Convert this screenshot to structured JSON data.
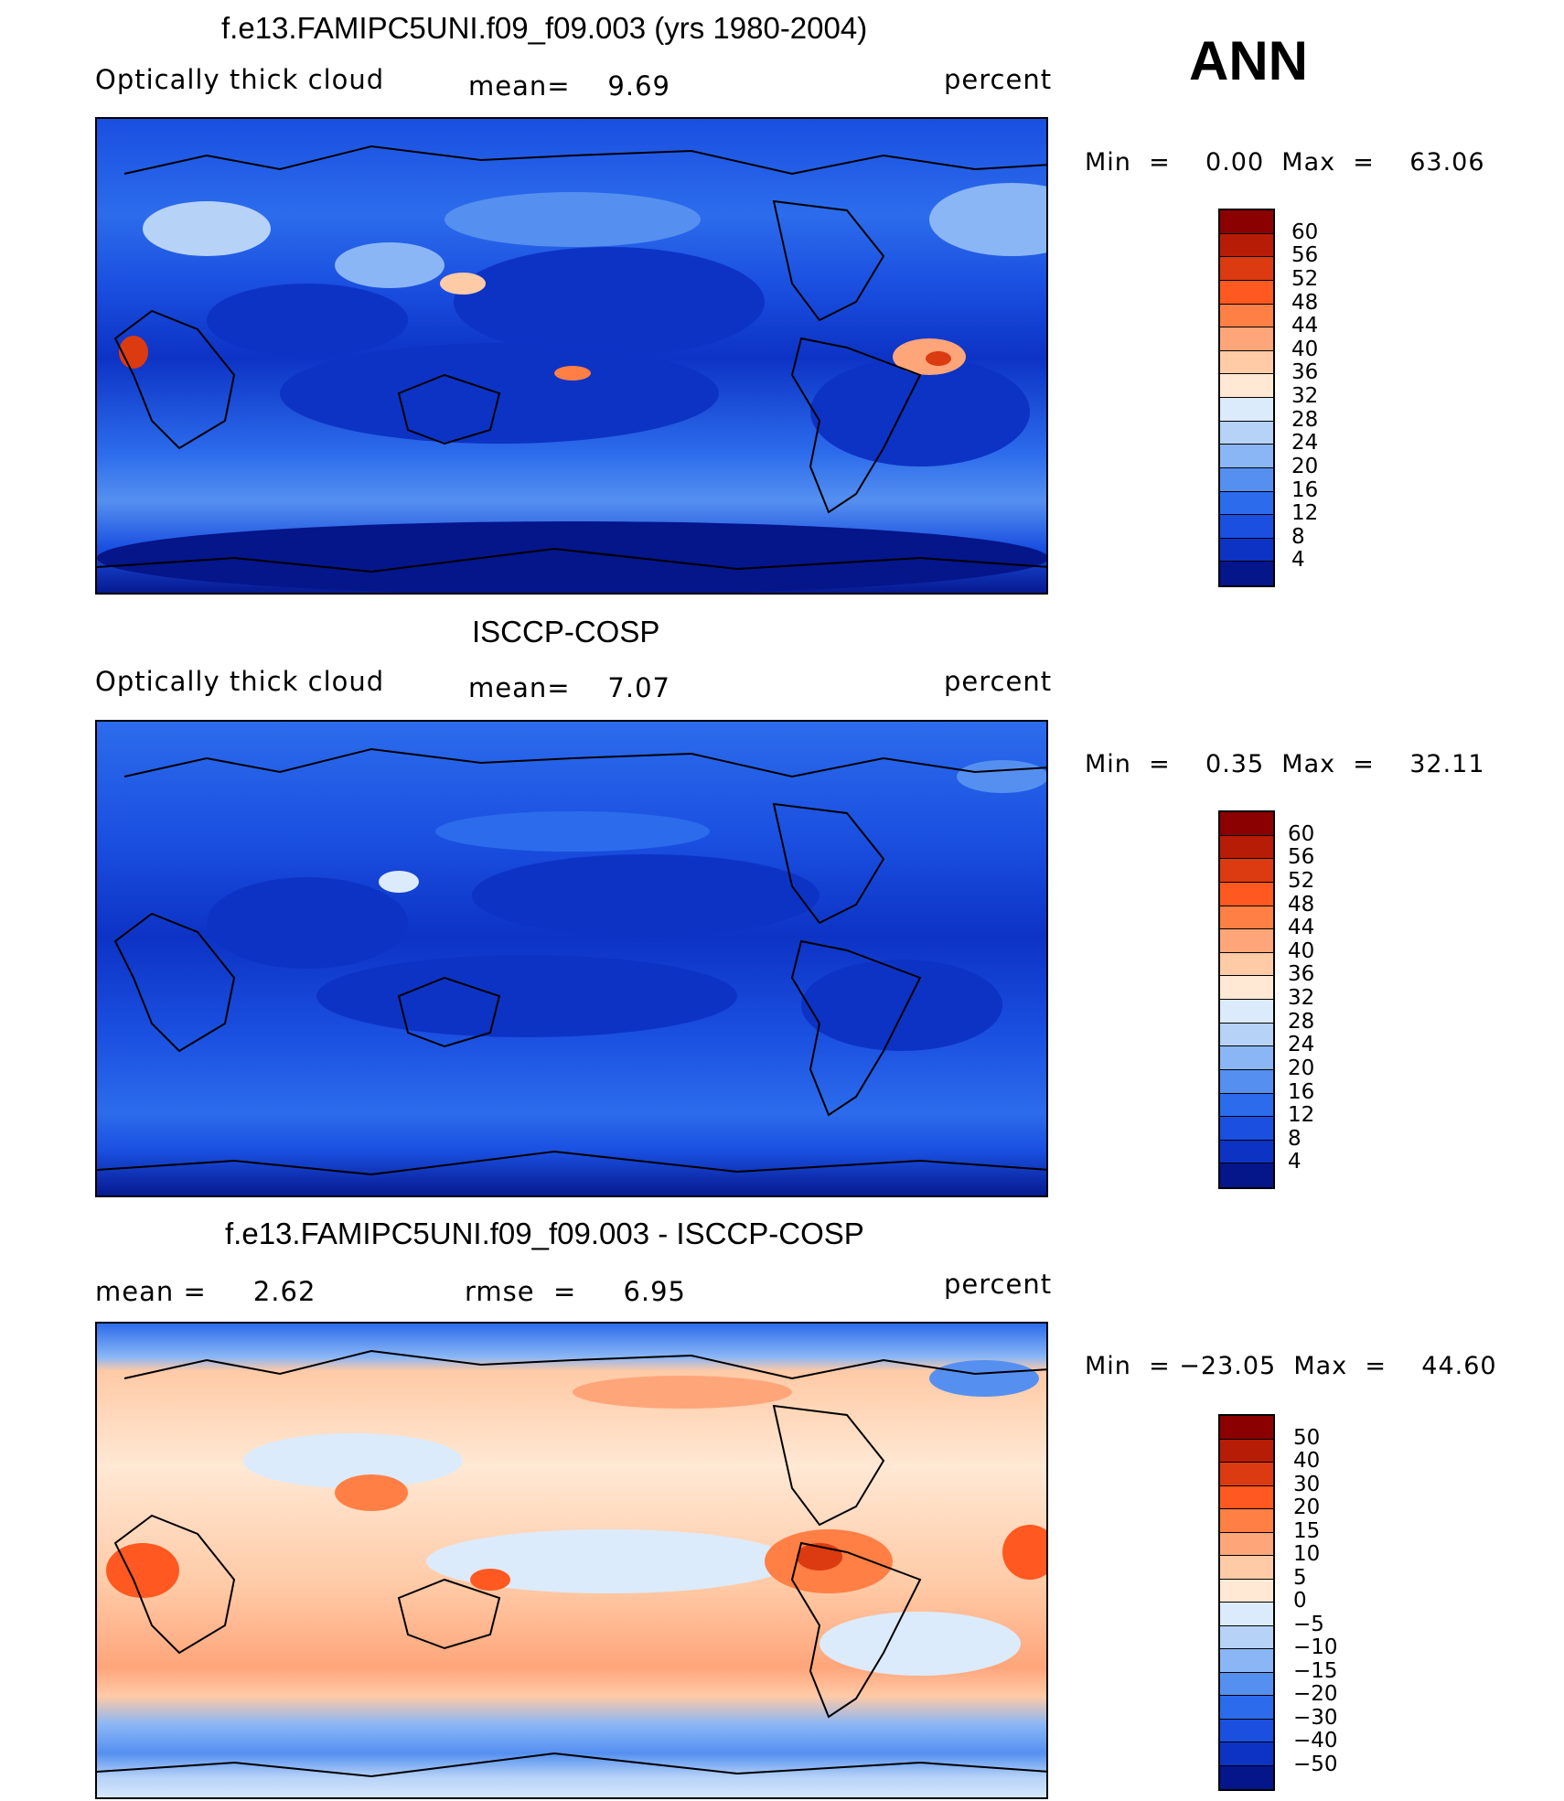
{
  "season": "ANN",
  "panels": [
    {
      "title": "f.e13.FAMIPC5UNI.f09_f09.003 (yrs 1980-2004)",
      "left_label": "Optically thick cloud",
      "mid_label": "mean=    9.69",
      "right_label": "percent",
      "minmax": "Min  =    0.00  Max  =    63.06",
      "colorbar": {
        "levels": [
          "60",
          "56",
          "52",
          "48",
          "44",
          "40",
          "36",
          "32",
          "28",
          "24",
          "20",
          "16",
          "12",
          "8",
          "4"
        ],
        "colors": [
          "#8b0000",
          "#b71c06",
          "#dc3a10",
          "#ff5820",
          "#ff7f45",
          "#ffa57a",
          "#ffcaa6",
          "#ffe8d4",
          "#dbebfb",
          "#b6d2f7",
          "#8ab6f5",
          "#5590f0",
          "#2c6cec",
          "#1a4fe0",
          "#0d33c5",
          "#05158a"
        ]
      }
    },
    {
      "title": "ISCCP-COSP",
      "left_label": "Optically thick cloud",
      "mid_label": "mean=    7.07",
      "right_label": "percent",
      "minmax": "Min  =    0.35  Max  =    32.11",
      "colorbar": {
        "levels": [
          "60",
          "56",
          "52",
          "48",
          "44",
          "40",
          "36",
          "32",
          "28",
          "24",
          "20",
          "16",
          "12",
          "8",
          "4"
        ],
        "colors": [
          "#8b0000",
          "#b71c06",
          "#dc3a10",
          "#ff5820",
          "#ff7f45",
          "#ffa57a",
          "#ffcaa6",
          "#ffe8d4",
          "#dbebfb",
          "#b6d2f7",
          "#8ab6f5",
          "#5590f0",
          "#2c6cec",
          "#1a4fe0",
          "#0d33c5",
          "#05158a"
        ]
      }
    },
    {
      "title": "f.e13.FAMIPC5UNI.f09_f09.003 - ISCCP-COSP",
      "left_label": "mean =     2.62",
      "mid_label": "rmse  =     6.95",
      "right_label": "percent",
      "minmax": "Min  = −23.05  Max  =    44.60",
      "colorbar": {
        "levels": [
          "50",
          "40",
          "30",
          "20",
          "15",
          "10",
          "5",
          "0",
          "−5",
          "−10",
          "−15",
          "−20",
          "−30",
          "−40",
          "−50"
        ],
        "colors": [
          "#8b0000",
          "#b71c06",
          "#dc3a10",
          "#ff5820",
          "#ff7f45",
          "#ffa57a",
          "#ffcaa6",
          "#ffe8d4",
          "#dbebfb",
          "#b6d2f7",
          "#8ab6f5",
          "#5590f0",
          "#2c6cec",
          "#1a4fe0",
          "#0d33c5",
          "#05158a"
        ]
      }
    }
  ]
}
